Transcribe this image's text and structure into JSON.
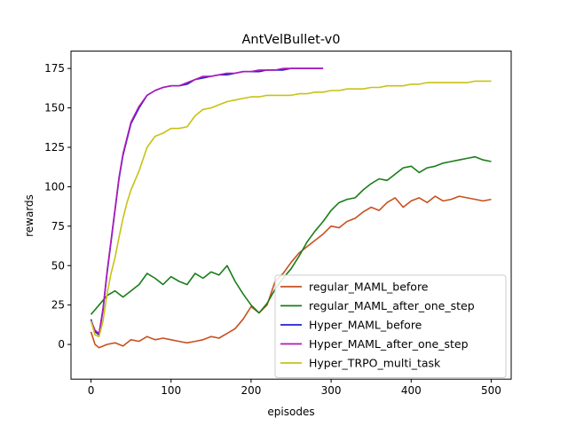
{
  "chart_data": {
    "type": "line",
    "title": "AntVelBullet-v0",
    "xlabel": "episodes",
    "ylabel": "rewards",
    "xlim": [
      -25,
      525
    ],
    "ylim": [
      -22,
      186
    ],
    "xticks": [
      0,
      100,
      200,
      300,
      400,
      500
    ],
    "yticks": [
      0,
      25,
      50,
      75,
      100,
      125,
      150,
      175
    ],
    "grid": false,
    "legend_position": "lower-right",
    "series": [
      {
        "name": "regular_MAML_before",
        "color": "#c8501e",
        "x": [
          0,
          5,
          10,
          20,
          30,
          40,
          50,
          60,
          70,
          80,
          90,
          100,
          110,
          120,
          130,
          140,
          150,
          160,
          170,
          180,
          190,
          200,
          210,
          220,
          230,
          240,
          250,
          260,
          270,
          280,
          290,
          300,
          310,
          320,
          330,
          340,
          350,
          360,
          370,
          380,
          390,
          400,
          410,
          420,
          430,
          440,
          450,
          460,
          470,
          480,
          490,
          500
        ],
        "y": [
          8,
          0,
          -2,
          0,
          1,
          -1,
          3,
          2,
          5,
          3,
          4,
          3,
          2,
          1,
          2,
          3,
          5,
          4,
          7,
          10,
          16,
          24,
          20,
          25,
          40,
          45,
          52,
          58,
          62,
          66,
          70,
          75,
          74,
          78,
          80,
          84,
          87,
          85,
          90,
          93,
          87,
          91,
          93,
          90,
          94,
          91,
          92,
          94,
          93,
          92,
          91,
          92
        ]
      },
      {
        "name": "regular_MAML_after_one_step",
        "color": "#1a7d1a",
        "x": [
          0,
          5,
          10,
          20,
          30,
          40,
          50,
          60,
          70,
          80,
          90,
          100,
          110,
          120,
          130,
          140,
          150,
          160,
          170,
          180,
          190,
          200,
          210,
          220,
          230,
          240,
          250,
          260,
          270,
          280,
          290,
          300,
          310,
          320,
          330,
          340,
          350,
          360,
          370,
          380,
          390,
          400,
          410,
          420,
          430,
          440,
          450,
          460,
          470,
          480,
          490,
          500
        ],
        "y": [
          19,
          22,
          25,
          31,
          34,
          30,
          34,
          38,
          45,
          42,
          38,
          43,
          40,
          38,
          45,
          42,
          46,
          44,
          50,
          40,
          32,
          25,
          20,
          26,
          35,
          42,
          48,
          56,
          65,
          72,
          78,
          85,
          90,
          92,
          93,
          98,
          102,
          105,
          104,
          108,
          112,
          113,
          109,
          112,
          113,
          115,
          116,
          117,
          118,
          119,
          117,
          116
        ]
      },
      {
        "name": "Hyper_MAML_before",
        "color": "#1f1fd6",
        "x": [
          0,
          5,
          10,
          15,
          20,
          25,
          30,
          35,
          40,
          45,
          50,
          55,
          60,
          70,
          80,
          90,
          100,
          110,
          120,
          130,
          140,
          150,
          160,
          170,
          180,
          190,
          200,
          210,
          220,
          230,
          240,
          250,
          260,
          270,
          280,
          290
        ],
        "y": [
          16,
          8,
          6,
          22,
          45,
          65,
          85,
          105,
          120,
          130,
          140,
          145,
          150,
          158,
          161,
          163,
          164,
          164,
          165,
          168,
          169,
          170,
          171,
          171,
          172,
          173,
          173,
          173,
          174,
          174,
          174,
          175,
          175,
          175,
          175,
          175
        ]
      },
      {
        "name": "Hyper_MAML_after_one_step",
        "color": "#b01ab8",
        "x": [
          0,
          5,
          10,
          15,
          20,
          25,
          30,
          35,
          40,
          45,
          50,
          55,
          60,
          70,
          80,
          90,
          100,
          110,
          120,
          130,
          140,
          150,
          160,
          170,
          180,
          190,
          200,
          210,
          220,
          230,
          240,
          250,
          260,
          270,
          280,
          290
        ],
        "y": [
          15,
          9,
          7,
          23,
          46,
          66,
          86,
          106,
          121,
          131,
          141,
          146,
          151,
          158,
          161,
          163,
          164,
          164,
          166,
          168,
          170,
          170,
          171,
          172,
          172,
          173,
          173,
          174,
          174,
          174,
          175,
          175,
          175,
          175,
          175,
          175
        ]
      },
      {
        "name": "Hyper_TRPO_multi_task",
        "color": "#c8c214",
        "x": [
          0,
          5,
          10,
          15,
          20,
          25,
          30,
          35,
          40,
          45,
          50,
          60,
          70,
          80,
          90,
          100,
          110,
          120,
          130,
          140,
          150,
          160,
          170,
          180,
          190,
          200,
          210,
          220,
          230,
          240,
          250,
          260,
          270,
          280,
          290,
          300,
          310,
          320,
          330,
          340,
          350,
          360,
          370,
          380,
          390,
          400,
          410,
          420,
          430,
          440,
          450,
          460,
          470,
          480,
          490,
          500
        ],
        "y": [
          15,
          6,
          5,
          15,
          32,
          45,
          55,
          68,
          80,
          90,
          98,
          110,
          125,
          132,
          134,
          137,
          137,
          138,
          145,
          149,
          150,
          152,
          154,
          155,
          156,
          157,
          157,
          158,
          158,
          158,
          158,
          159,
          159,
          160,
          160,
          161,
          161,
          162,
          162,
          162,
          163,
          163,
          164,
          164,
          164,
          165,
          165,
          166,
          166,
          166,
          166,
          166,
          166,
          167,
          167,
          167
        ]
      }
    ]
  }
}
